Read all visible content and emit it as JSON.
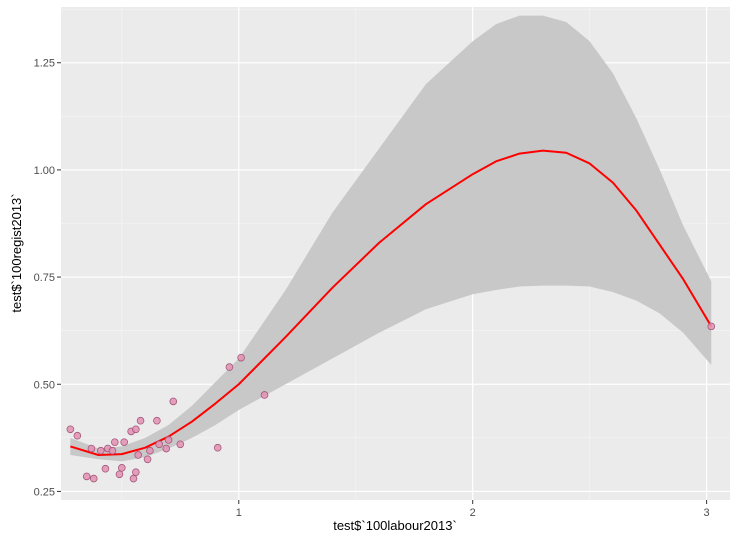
{
  "chart_data": {
    "type": "scatter",
    "xlabel": "test$`100labour2013`",
    "ylabel": "test$`100regist2013`",
    "xlim": [
      0.24,
      3.1
    ],
    "ylim": [
      0.23,
      1.38
    ],
    "x_ticks": [
      1,
      2,
      3
    ],
    "x_tick_labels": [
      "1",
      "2",
      "3"
    ],
    "y_ticks": [
      0.25,
      0.5,
      0.75,
      1.0,
      1.25
    ],
    "y_tick_labels": [
      "0.25",
      "0.50",
      "0.75",
      "1.00",
      "1.25"
    ],
    "x_minor_ticks": [
      0.5,
      1.5,
      2.5
    ],
    "y_minor_ticks": [
      0.375,
      0.625,
      0.875,
      1.125,
      1.375
    ],
    "grid": true,
    "background_color": "#ebebeb",
    "point_fill_color": "#e391b4",
    "point_stroke_color": "#a35879",
    "smooth_line_color": "#ff0000",
    "ribbon_color": "#c8c8c8",
    "points": [
      {
        "x": 0.28,
        "y": 0.395
      },
      {
        "x": 0.31,
        "y": 0.38
      },
      {
        "x": 0.35,
        "y": 0.285
      },
      {
        "x": 0.37,
        "y": 0.35
      },
      {
        "x": 0.38,
        "y": 0.28
      },
      {
        "x": 0.41,
        "y": 0.345
      },
      {
        "x": 0.43,
        "y": 0.303
      },
      {
        "x": 0.44,
        "y": 0.35
      },
      {
        "x": 0.46,
        "y": 0.345
      },
      {
        "x": 0.47,
        "y": 0.365
      },
      {
        "x": 0.49,
        "y": 0.29
      },
      {
        "x": 0.5,
        "y": 0.305
      },
      {
        "x": 0.51,
        "y": 0.365
      },
      {
        "x": 0.54,
        "y": 0.39
      },
      {
        "x": 0.55,
        "y": 0.28
      },
      {
        "x": 0.56,
        "y": 0.395
      },
      {
        "x": 0.56,
        "y": 0.295
      },
      {
        "x": 0.57,
        "y": 0.335
      },
      {
        "x": 0.58,
        "y": 0.415
      },
      {
        "x": 0.61,
        "y": 0.325
      },
      {
        "x": 0.62,
        "y": 0.345
      },
      {
        "x": 0.65,
        "y": 0.415
      },
      {
        "x": 0.66,
        "y": 0.36
      },
      {
        "x": 0.69,
        "y": 0.35
      },
      {
        "x": 0.7,
        "y": 0.37
      },
      {
        "x": 0.72,
        "y": 0.46
      },
      {
        "x": 0.75,
        "y": 0.36
      },
      {
        "x": 0.91,
        "y": 0.352
      },
      {
        "x": 0.96,
        "y": 0.54
      },
      {
        "x": 1.01,
        "y": 0.562
      },
      {
        "x": 1.11,
        "y": 0.475
      },
      {
        "x": 3.02,
        "y": 0.635
      }
    ],
    "smooth_fit": {
      "x": [
        0.28,
        0.4,
        0.5,
        0.6,
        0.7,
        0.8,
        0.9,
        1.0,
        1.2,
        1.4,
        1.6,
        1.8,
        2.0,
        2.1,
        2.2,
        2.3,
        2.4,
        2.5,
        2.6,
        2.7,
        2.8,
        2.9,
        3.02
      ],
      "y": [
        0.355,
        0.335,
        0.337,
        0.352,
        0.378,
        0.413,
        0.455,
        0.5,
        0.61,
        0.725,
        0.83,
        0.92,
        0.99,
        1.02,
        1.038,
        1.045,
        1.04,
        1.015,
        0.97,
        0.905,
        0.825,
        0.745,
        0.635
      ],
      "lower": [
        0.335,
        0.325,
        0.32,
        0.33,
        0.35,
        0.375,
        0.405,
        0.44,
        0.5,
        0.56,
        0.62,
        0.675,
        0.71,
        0.72,
        0.728,
        0.73,
        0.73,
        0.728,
        0.715,
        0.695,
        0.665,
        0.62,
        0.545
      ],
      "upper": [
        0.375,
        0.35,
        0.355,
        0.375,
        0.405,
        0.45,
        0.505,
        0.56,
        0.72,
        0.9,
        1.05,
        1.2,
        1.3,
        1.34,
        1.36,
        1.36,
        1.345,
        1.3,
        1.225,
        1.12,
        1.0,
        0.87,
        0.74
      ]
    }
  }
}
